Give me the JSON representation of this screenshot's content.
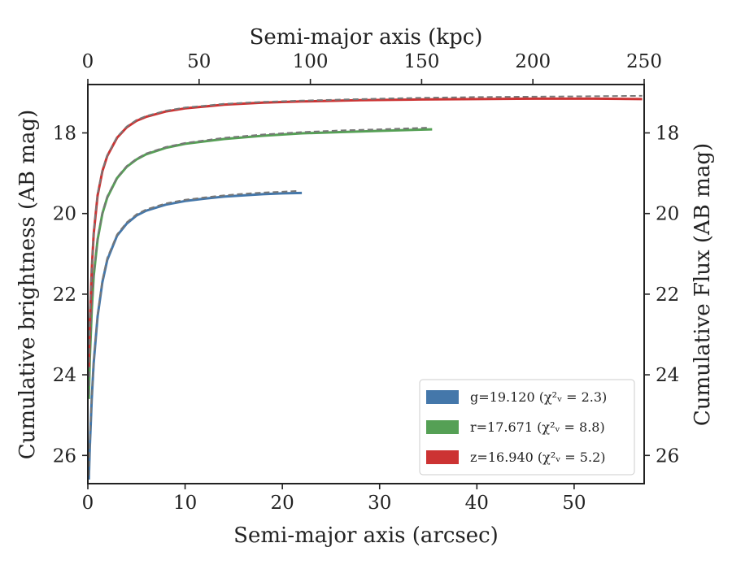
{
  "chart_data": {
    "type": "line",
    "x_bottom": {
      "label": "Semi-major axis (arcsec)",
      "lim": [
        0,
        57.2
      ],
      "ticks": [
        0,
        10,
        20,
        30,
        40,
        50
      ],
      "tick_labels": [
        "0",
        "10",
        "20",
        "30",
        "40",
        "50"
      ]
    },
    "x_top": {
      "label": "Semi-major axis (kpc)",
      "lim": [
        0,
        250
      ],
      "ticks": [
        0,
        50,
        100,
        150,
        200,
        250
      ],
      "tick_labels": [
        "0",
        "50",
        "100",
        "150",
        "200",
        "250"
      ]
    },
    "y_left": {
      "label": "Cumulative brightness (AB mag)",
      "lim": [
        26.7,
        16.8
      ],
      "inverted": true,
      "ticks": [
        18,
        20,
        22,
        24,
        26
      ],
      "tick_labels": [
        "18",
        "20",
        "22",
        "24",
        "26"
      ]
    },
    "y_right": {
      "label": "Cumulative Flux (AB mag)",
      "lim": [
        26.7,
        16.8
      ],
      "inverted": true,
      "ticks": [
        18,
        20,
        22,
        24,
        26
      ],
      "tick_labels": [
        "18",
        "20",
        "22",
        "24",
        "26"
      ]
    },
    "grid": false,
    "legend_position": "lower-right",
    "series": [
      {
        "name": "g=19.120 (χ²ᵥ = 2.3)",
        "color": "#4477aa",
        "x": [
          0.1,
          0.2,
          0.4,
          0.6,
          1.0,
          1.5,
          2.0,
          3.0,
          4.0,
          5.0,
          6.0,
          8.0,
          10.0,
          12.0,
          14.0,
          16.0,
          18.0,
          20.0,
          22.0
        ],
        "y": [
          26.6,
          25.8,
          24.6,
          23.7,
          22.55,
          21.7,
          21.15,
          20.55,
          20.25,
          20.05,
          19.93,
          19.78,
          19.69,
          19.63,
          19.58,
          19.55,
          19.52,
          19.5,
          19.49
        ],
        "fit_x": [
          0.1,
          0.2,
          0.4,
          0.6,
          1.0,
          1.5,
          2.0,
          3.0,
          4.0,
          5.0,
          6.0,
          8.0,
          10.0,
          12.0,
          14.0,
          16.0,
          18.0,
          20.0,
          21.5
        ],
        "fit_y": [
          26.5,
          25.7,
          24.55,
          23.65,
          22.5,
          21.65,
          21.1,
          20.52,
          20.22,
          20.02,
          19.9,
          19.75,
          19.66,
          19.6,
          19.55,
          19.51,
          19.48,
          19.46,
          19.44
        ]
      },
      {
        "name": "r=17.671 (χ²ᵥ = 8.8)",
        "color": "#55a055",
        "x": [
          0.1,
          0.2,
          0.4,
          0.6,
          1.0,
          1.5,
          2.0,
          3.0,
          4.0,
          5.0,
          6.0,
          8.0,
          10.0,
          14.0,
          18.0,
          22.0,
          26.0,
          30.0,
          35.4
        ],
        "y": [
          24.6,
          23.6,
          22.4,
          21.55,
          20.65,
          20.0,
          19.6,
          19.12,
          18.84,
          18.66,
          18.53,
          18.37,
          18.27,
          18.15,
          18.07,
          18.01,
          17.98,
          17.95,
          17.91
        ],
        "fit_x": [
          0.1,
          0.2,
          0.4,
          0.6,
          1.0,
          1.5,
          2.0,
          3.0,
          4.0,
          5.0,
          6.0,
          8.0,
          10.0,
          14.0,
          18.0,
          22.0,
          26.0,
          30.0,
          35.0
        ],
        "fit_y": [
          24.5,
          23.5,
          22.35,
          21.5,
          20.6,
          19.97,
          19.57,
          19.1,
          18.82,
          18.64,
          18.51,
          18.35,
          18.25,
          18.12,
          18.04,
          17.98,
          17.94,
          17.91,
          17.87
        ]
      },
      {
        "name": "z=16.940 (χ²ᵥ = 5.2)",
        "color": "#cc3333",
        "x": [
          0.1,
          0.2,
          0.4,
          0.6,
          1.0,
          1.5,
          2.0,
          3.0,
          4.0,
          5.0,
          6.0,
          8.0,
          10.0,
          14.0,
          18.0,
          22.0,
          28.0,
          34.0,
          40.0,
          46.0,
          52.0,
          57.0
        ],
        "y": [
          23.8,
          22.7,
          21.4,
          20.5,
          19.55,
          18.95,
          18.57,
          18.12,
          17.86,
          17.7,
          17.6,
          17.47,
          17.39,
          17.3,
          17.25,
          17.22,
          17.19,
          17.17,
          17.16,
          17.15,
          17.15,
          17.16
        ],
        "fit_x": [
          0.1,
          0.2,
          0.4,
          0.6,
          1.0,
          1.5,
          2.0,
          3.0,
          4.0,
          5.0,
          6.0,
          8.0,
          10.0,
          14.0,
          18.0,
          22.0,
          28.0,
          34.0,
          40.0,
          46.0,
          52.0,
          57.0
        ],
        "fit_y": [
          23.7,
          22.6,
          21.35,
          20.45,
          19.5,
          18.92,
          18.55,
          18.1,
          17.84,
          17.68,
          17.58,
          17.45,
          17.37,
          17.28,
          17.23,
          17.2,
          17.16,
          17.13,
          17.11,
          17.1,
          17.09,
          17.08
        ]
      }
    ],
    "fit_style": {
      "color": "#777777",
      "dash": "dashed"
    }
  }
}
